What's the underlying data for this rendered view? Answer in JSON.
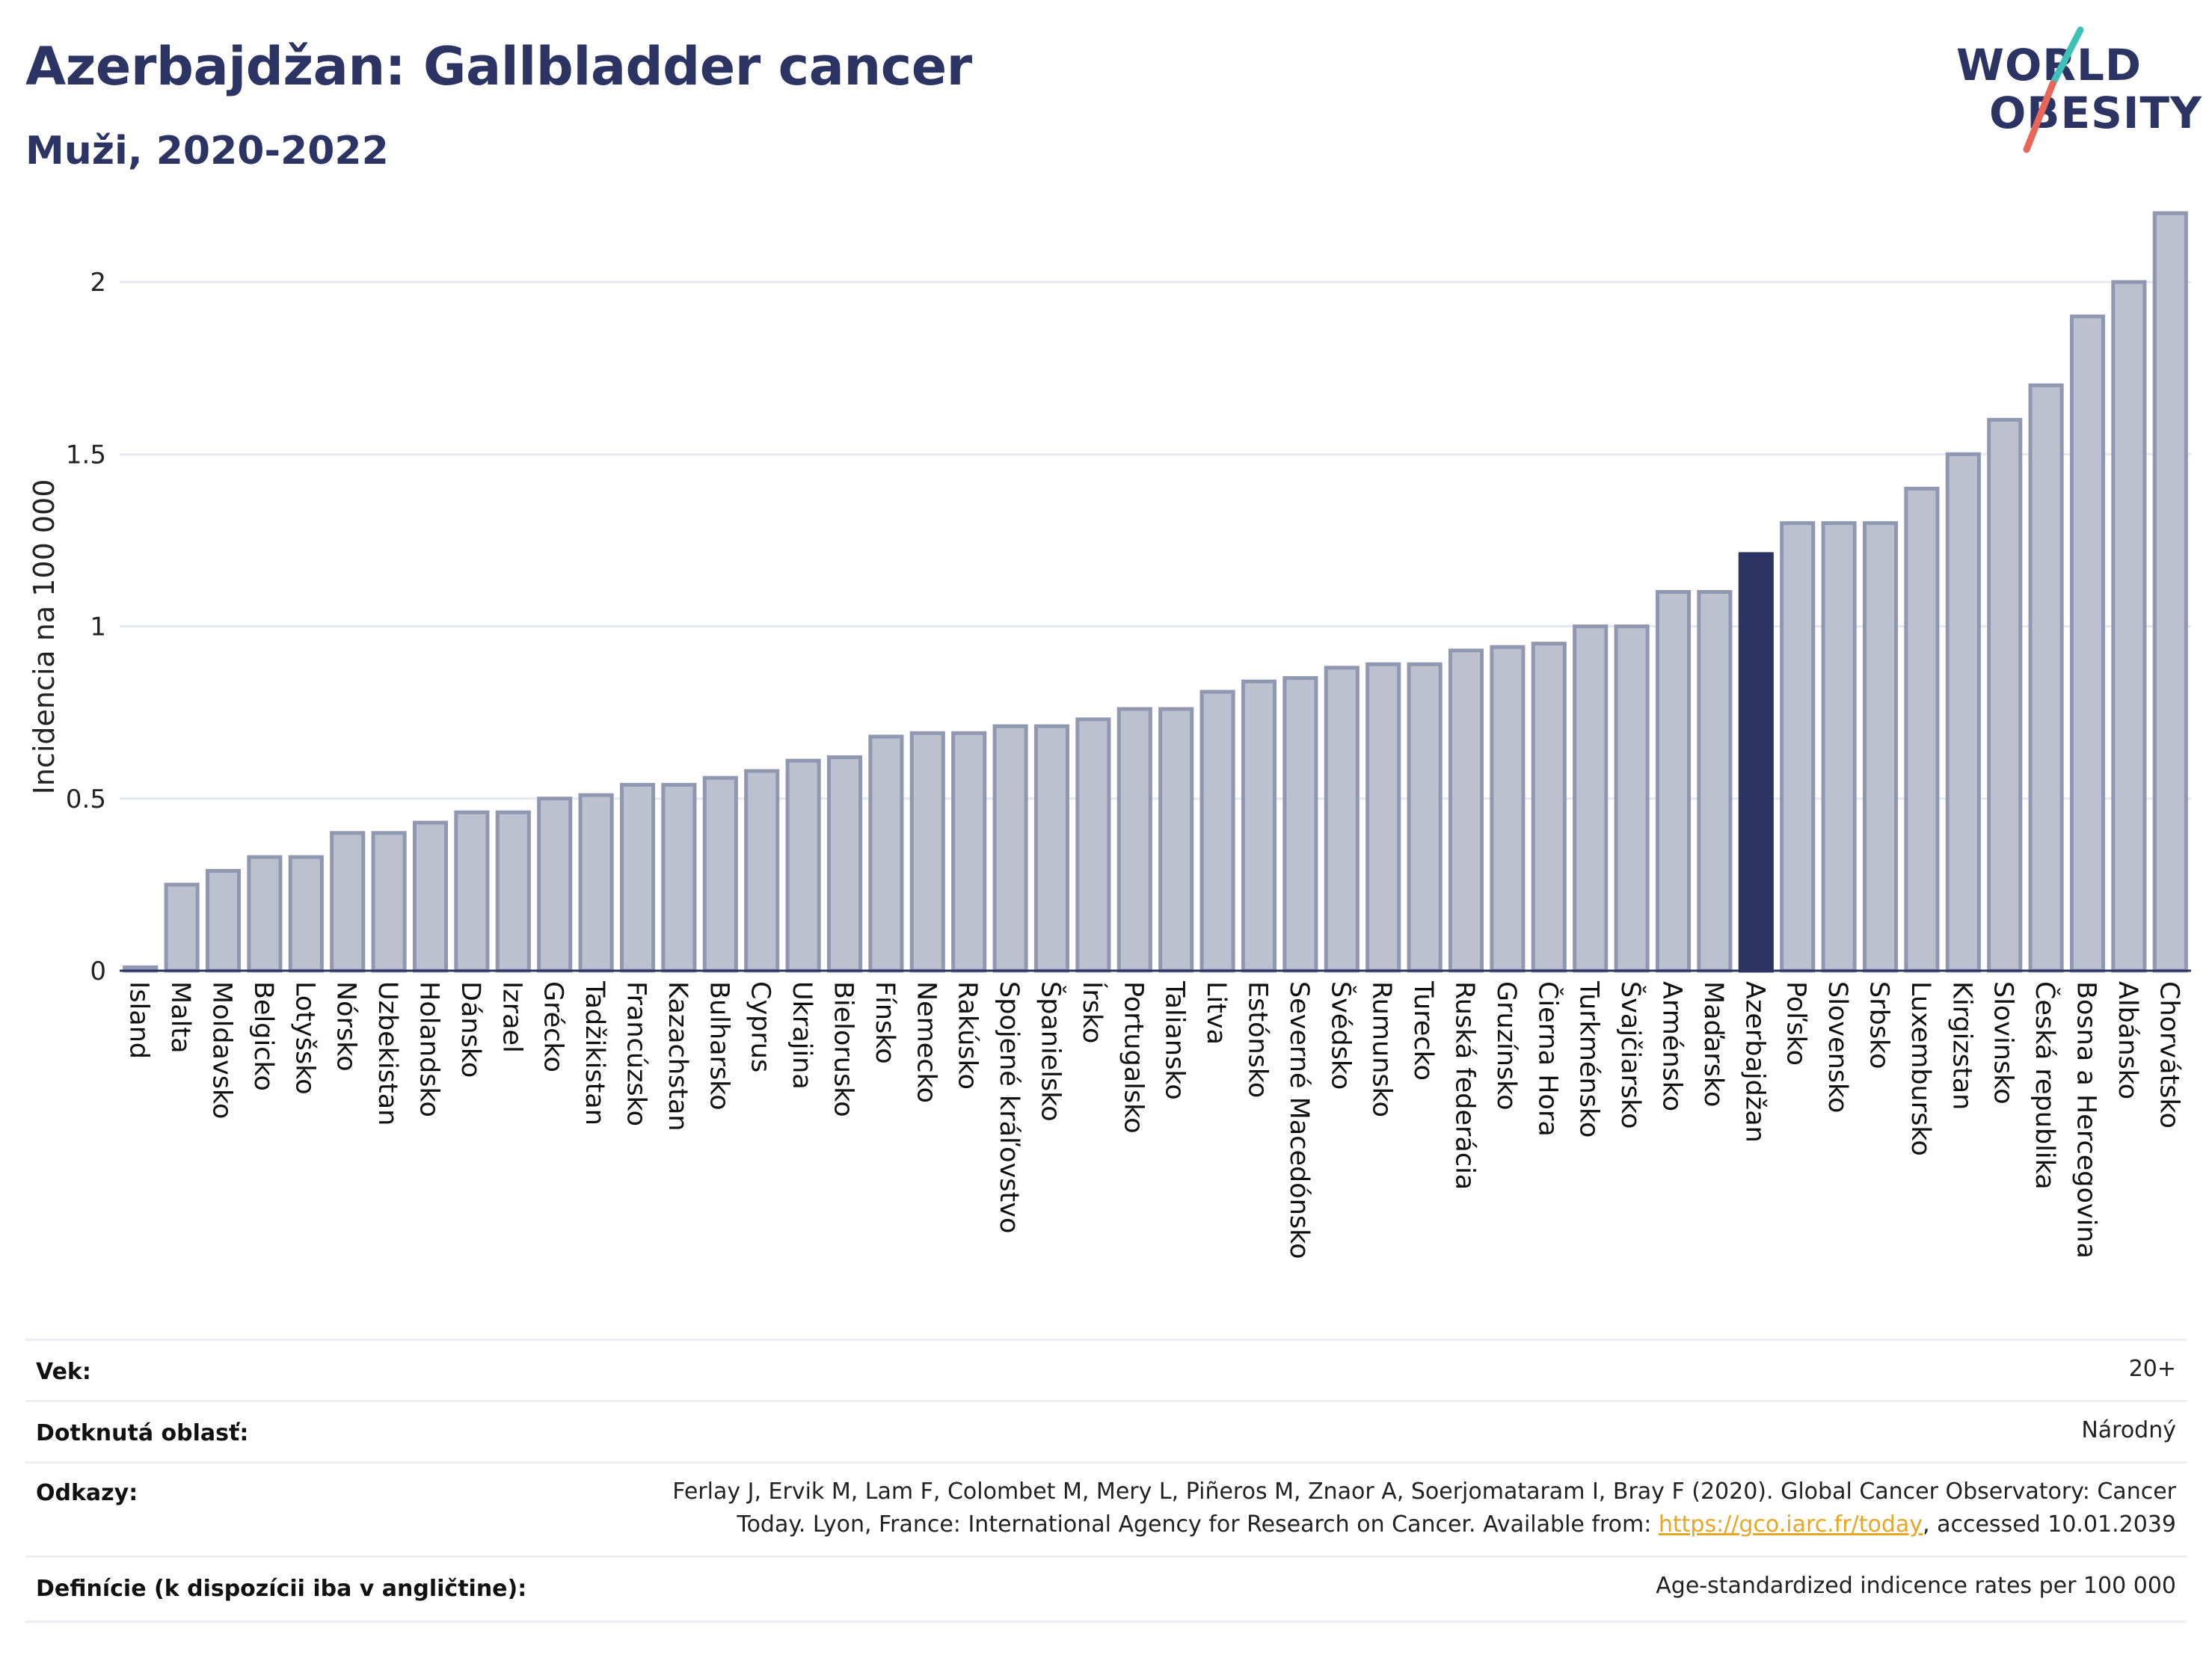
{
  "header": {
    "title": "Azerbajdžan: Gallbladder cancer",
    "subtitle": "Muži, 2020-2022"
  },
  "logo": {
    "line1": "WORLD",
    "line2": "OBESITY",
    "accent_teal": "#3ec1b8",
    "accent_red": "#e8665a"
  },
  "colors": {
    "bar": "#bcc1d0",
    "bar_edge": "#8f97b1",
    "highlight": "#2b3462",
    "grid": "#e6e8ef"
  },
  "chart_data": {
    "type": "bar",
    "ylabel": "Incidencia na 100 000",
    "xlabel": "",
    "ylim": [
      0,
      2.2
    ],
    "yticks": [
      0,
      0.5,
      1,
      1.5,
      2
    ],
    "ytick_labels": [
      "0",
      "0.5",
      "1",
      "1.5",
      "2"
    ],
    "grid": true,
    "highlight": "Azerbajdžan",
    "categories": [
      "Island",
      "Malta",
      "Moldavsko",
      "Belgicko",
      "Lotyšsko",
      "Nórsko",
      "Uzbekistan",
      "Holandsko",
      "Dánsko",
      "Izrael",
      "Grécko",
      "Tadžikistan",
      "Francúzsko",
      "Kazachstan",
      "Bulharsko",
      "Cyprus",
      "Ukrajina",
      "Bielorusko",
      "Fínsko",
      "Nemecko",
      "Rakúsko",
      "Spojené kráľovstvo",
      "Španielsko",
      "Írsko",
      "Portugalsko",
      "Taliansko",
      "Litva",
      "Estónsko",
      "Severné Macedónsko",
      "Švédsko",
      "Rumunsko",
      "Turecko",
      "Ruská federácia",
      "Gruzínsko",
      "Čierna Hora",
      "Turkménsko",
      "Švajčiarsko",
      "Arménsko",
      "Maďarsko",
      "Azerbajdžan",
      "Poľsko",
      "Slovensko",
      "Srbsko",
      "Luxembursko",
      "Kirgizstan",
      "Slovinsko",
      "Česká republika",
      "Bosna a Hercegovina",
      "Albánsko",
      "Chorvátsko"
    ],
    "values": [
      0.01,
      0.25,
      0.29,
      0.33,
      0.33,
      0.4,
      0.4,
      0.43,
      0.46,
      0.46,
      0.5,
      0.51,
      0.54,
      0.54,
      0.56,
      0.58,
      0.61,
      0.62,
      0.68,
      0.69,
      0.69,
      0.71,
      0.71,
      0.73,
      0.76,
      0.76,
      0.81,
      0.84,
      0.85,
      0.88,
      0.89,
      0.89,
      0.93,
      0.94,
      0.95,
      1.0,
      1.0,
      1.1,
      1.1,
      1.21,
      1.3,
      1.3,
      1.3,
      1.4,
      1.5,
      1.6,
      1.7,
      1.9,
      2.0,
      2.2
    ]
  },
  "info": {
    "rows": [
      {
        "key": "Vek:",
        "value": "20+"
      },
      {
        "key": "Dotknutá oblasť:",
        "value": "Národný"
      },
      {
        "key": "Odkazy:",
        "value_line1": "Ferlay J, Ervik M, Lam F, Colombet M, Mery L, Piñeros M, Znaor A, Soerjomataram I, Bray F (2020). Global Cancer Observatory: Cancer",
        "value_line2_pre": "Today. Lyon, France: International Agency for Research on Cancer. Available from: ",
        "value_link": "https://gco.iarc.fr/today",
        "value_line2_post": ", accessed 10.01.2039"
      },
      {
        "key": "Definície (k dispozícii iba v angličtine):",
        "value": "Age-standardized indicence rates per 100 000"
      }
    ]
  }
}
